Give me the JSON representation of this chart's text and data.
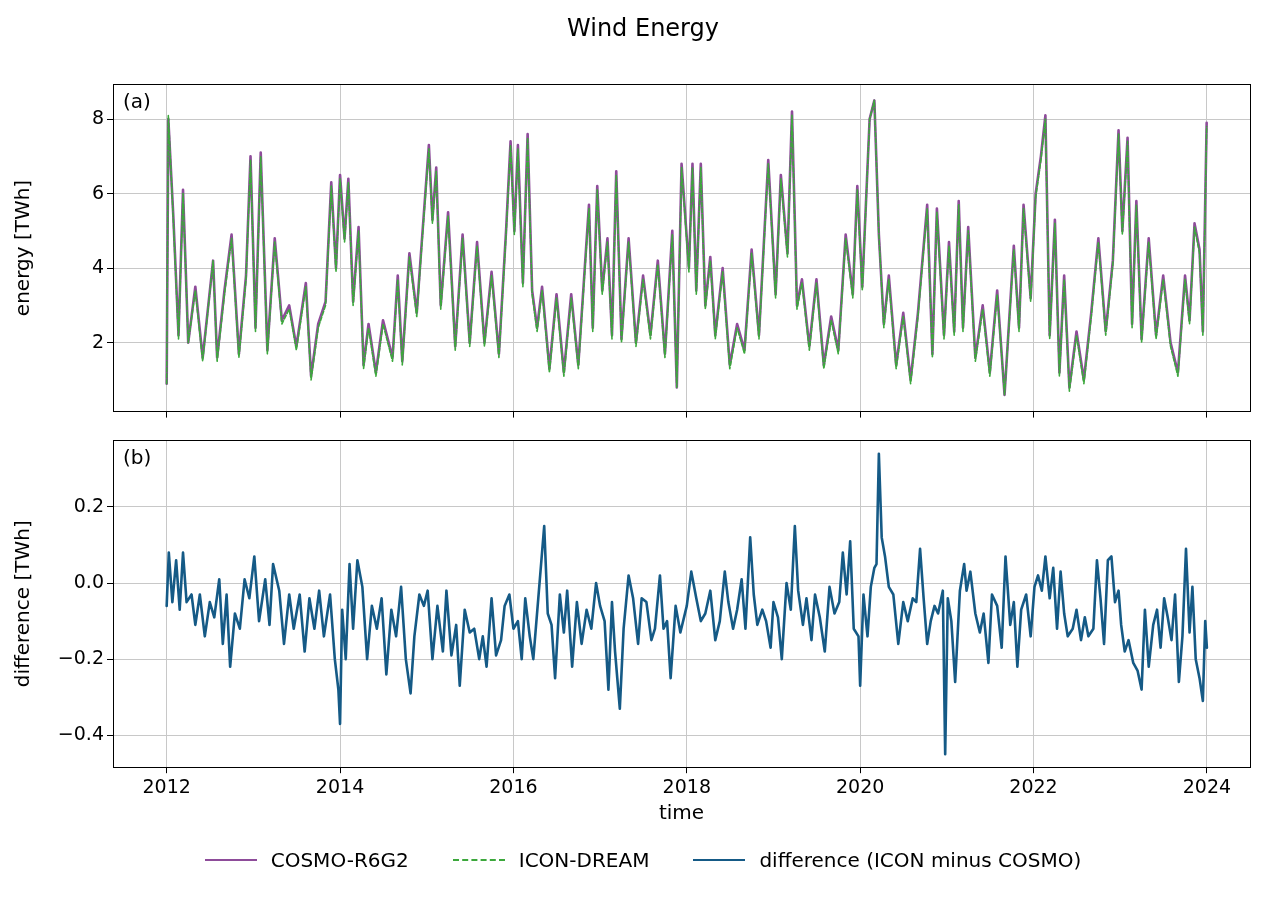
{
  "chart_data": [
    {
      "type": "line",
      "title": "Wind Energy",
      "ylabel": "energy [TWh]",
      "annotations": [
        "(a)"
      ],
      "xlim": [
        "2011-05-20",
        "2024-07-01"
      ],
      "xticks": [
        "2012",
        "2014",
        "2016",
        "2018",
        "2020",
        "2022",
        "2024"
      ],
      "ylim": [
        0.15,
        8.93
      ],
      "yticks": [
        2,
        4,
        6,
        8
      ],
      "tick_labels": "y",
      "grid": true,
      "legend": "bottom",
      "x": [
        "2012-01-01",
        "2012-01-08",
        "2012-01-29",
        "2012-02-20",
        "2012-03-10",
        "2012-04-01",
        "2012-05-01",
        "2012-06-01",
        "2012-07-15",
        "2012-08-01",
        "2012-09-01",
        "2012-10-01",
        "2012-11-01",
        "2012-12-01",
        "2012-12-20",
        "2013-01-10",
        "2013-02-01",
        "2013-03-01",
        "2013-04-01",
        "2013-05-01",
        "2013-06-01",
        "2013-07-01",
        "2013-08-10",
        "2013-09-01",
        "2013-10-01",
        "2013-11-01",
        "2013-11-25",
        "2013-12-15",
        "2014-01-01",
        "2014-01-20",
        "2014-02-05",
        "2014-02-25",
        "2014-03-20",
        "2014-04-10",
        "2014-05-01",
        "2014-06-01",
        "2014-07-01",
        "2014-08-10",
        "2014-09-01",
        "2014-09-20",
        "2014-10-20",
        "2014-11-20",
        "2014-12-10",
        "2015-01-10",
        "2015-01-25",
        "2015-02-10",
        "2015-03-01",
        "2015-04-01",
        "2015-05-01",
        "2015-06-01",
        "2015-07-01",
        "2015-08-01",
        "2015-09-01",
        "2015-10-01",
        "2015-11-01",
        "2015-12-01",
        "2015-12-20",
        "2016-01-05",
        "2016-01-20",
        "2016-02-10",
        "2016-03-01",
        "2016-03-20",
        "2016-04-10",
        "2016-05-01",
        "2016-06-01",
        "2016-07-01",
        "2016-08-01",
        "2016-09-01",
        "2016-10-01",
        "2016-11-15",
        "2016-12-01",
        "2016-12-20",
        "2017-01-10",
        "2017-02-01",
        "2017-02-20",
        "2017-03-10",
        "2017-04-01",
        "2017-05-01",
        "2017-06-01",
        "2017-07-01",
        "2017-08-01",
        "2017-09-01",
        "2017-10-01",
        "2017-11-01",
        "2017-11-20",
        "2017-12-10",
        "2018-01-10",
        "2018-01-25",
        "2018-02-10",
        "2018-03-01",
        "2018-03-20",
        "2018-04-10",
        "2018-05-01",
        "2018-06-01",
        "2018-07-01",
        "2018-08-01",
        "2018-09-01",
        "2018-10-01",
        "2018-11-01",
        "2018-12-10",
        "2019-01-10",
        "2019-02-01",
        "2019-03-01",
        "2019-03-20",
        "2019-04-10",
        "2019-05-01",
        "2019-06-01",
        "2019-07-01",
        "2019-08-01",
        "2019-09-01",
        "2019-10-01",
        "2019-11-01",
        "2019-12-01",
        "2019-12-20",
        "2020-01-10",
        "2020-02-10",
        "2020-03-01",
        "2020-03-20",
        "2020-04-10",
        "2020-05-01",
        "2020-06-01",
        "2020-07-01",
        "2020-08-01",
        "2020-09-01",
        "2020-10-10",
        "2020-11-01",
        "2020-11-20",
        "2020-12-20",
        "2021-01-10",
        "2021-02-01",
        "2021-02-20",
        "2021-03-10",
        "2021-04-01",
        "2021-05-01",
        "2021-06-01",
        "2021-07-01",
        "2021-08-01",
        "2021-09-01",
        "2021-10-10",
        "2021-11-01",
        "2021-11-20",
        "2021-12-20",
        "2022-01-10",
        "2022-02-01",
        "2022-02-20",
        "2022-03-10",
        "2022-04-01",
        "2022-04-20",
        "2022-05-10",
        "2022-06-01",
        "2022-07-01",
        "2022-08-01",
        "2022-09-01",
        "2022-10-01",
        "2022-11-01",
        "2022-12-01",
        "2022-12-25",
        "2023-01-10",
        "2023-02-01",
        "2023-02-20",
        "2023-03-10",
        "2023-04-01",
        "2023-05-01",
        "2023-06-01",
        "2023-07-01",
        "2023-08-01",
        "2023-09-01",
        "2023-10-01",
        "2023-10-20",
        "2023-11-10",
        "2023-12-01",
        "2023-12-15",
        "2023-12-31"
      ],
      "series": [
        {
          "name": "COSMO-R6G2",
          "color": "#8e4c9a",
          "values": [
            0.9,
            8.0,
            5.4,
            2.2,
            6.1,
            2.0,
            3.5,
            1.6,
            4.2,
            1.6,
            3.4,
            4.9,
            1.7,
            3.8,
            7.0,
            2.4,
            7.1,
            1.8,
            4.8,
            2.6,
            3.0,
            1.9,
            3.6,
            1.1,
            2.5,
            3.1,
            6.3,
            4.0,
            6.5,
            4.8,
            6.4,
            3.1,
            5.1,
            1.4,
            2.5,
            1.2,
            2.6,
            1.6,
            3.8,
            1.5,
            4.4,
            2.8,
            4.6,
            7.3,
            5.3,
            6.7,
            3.0,
            5.5,
            1.9,
            4.9,
            2.0,
            4.7,
            2.0,
            3.9,
            1.7,
            5.0,
            7.4,
            5.0,
            7.3,
            3.6,
            7.6,
            3.4,
            2.4,
            3.5,
            1.3,
            3.3,
            1.2,
            3.3,
            1.4,
            5.7,
            2.4,
            6.2,
            3.4,
            4.8,
            2.2,
            6.6,
            2.1,
            4.8,
            2.0,
            3.8,
            2.2,
            4.2,
            1.7,
            5.0,
            0.8,
            6.8,
            4.0,
            6.8,
            3.4,
            6.8,
            3.0,
            4.3,
            2.2,
            4.0,
            1.4,
            2.5,
            1.8,
            4.5,
            2.2,
            6.9,
            3.3,
            6.5,
            4.4,
            8.2,
            3.0,
            3.7,
            1.9,
            3.7,
            1.4,
            2.7,
            1.8,
            4.9,
            3.3,
            6.2,
            3.5,
            8.0,
            8.5,
            4.9,
            2.5,
            3.8,
            1.4,
            2.8,
            1.0,
            2.8,
            5.7,
            1.7,
            5.6,
            2.2,
            4.7,
            2.3,
            5.8,
            2.4,
            5.1,
            1.6,
            3.0,
            1.2,
            3.4,
            0.6,
            4.6,
            2.4,
            5.7,
            3.2,
            6.0,
            7.0,
            8.1,
            2.2,
            5.3,
            1.2,
            3.8,
            0.8,
            2.3,
            1.0,
            2.8,
            4.8,
            2.3,
            4.2,
            7.7,
            5.0,
            7.5,
            2.5,
            5.8,
            2.1,
            4.8,
            2.2,
            3.8,
            2.0,
            1.2,
            3.8,
            2.6,
            5.2,
            4.5,
            2.3,
            7.9
          ]
        },
        {
          "name": "ICON-DREAM",
          "color": "#3ca83c",
          "line_style": "dashed",
          "values": [
            0.9,
            8.1,
            5.3,
            2.1,
            6.0,
            2.0,
            3.4,
            1.5,
            4.2,
            1.5,
            3.3,
            4.8,
            1.6,
            3.7,
            6.9,
            2.3,
            7.0,
            1.7,
            4.7,
            2.5,
            2.9,
            1.8,
            3.5,
            1.0,
            2.4,
            3.0,
            6.2,
            3.9,
            6.4,
            4.7,
            6.3,
            3.0,
            5.0,
            1.3,
            2.4,
            1.1,
            2.5,
            1.5,
            3.7,
            1.4,
            4.3,
            2.7,
            4.5,
            7.2,
            5.2,
            6.6,
            2.9,
            5.4,
            1.8,
            4.8,
            1.9,
            4.6,
            1.9,
            3.8,
            1.6,
            4.9,
            7.3,
            4.9,
            7.2,
            3.5,
            7.5,
            3.3,
            2.3,
            3.4,
            1.2,
            3.2,
            1.1,
            3.2,
            1.3,
            5.6,
            2.3,
            6.1,
            3.3,
            4.7,
            2.1,
            6.5,
            2.0,
            4.7,
            1.9,
            3.7,
            2.1,
            4.1,
            1.6,
            4.9,
            0.8,
            6.7,
            3.9,
            6.7,
            3.3,
            6.7,
            2.9,
            4.2,
            2.1,
            3.9,
            1.3,
            2.4,
            1.7,
            4.4,
            2.1,
            6.8,
            3.2,
            6.4,
            4.3,
            8.1,
            2.9,
            3.6,
            1.8,
            3.6,
            1.3,
            2.6,
            1.7,
            4.8,
            3.2,
            6.1,
            3.4,
            8.0,
            8.5,
            4.9,
            2.4,
            3.7,
            1.3,
            2.7,
            0.9,
            2.7,
            5.6,
            1.6,
            5.5,
            2.1,
            4.6,
            2.2,
            5.7,
            2.3,
            5.0,
            1.5,
            2.9,
            1.1,
            3.3,
            0.6,
            4.5,
            2.3,
            5.6,
            3.1,
            5.9,
            6.9,
            8.0,
            2.1,
            5.2,
            1.1,
            3.7,
            0.7,
            2.2,
            0.9,
            2.7,
            4.7,
            2.2,
            4.1,
            7.6,
            4.9,
            7.4,
            2.4,
            5.7,
            2.0,
            4.7,
            2.1,
            3.7,
            1.9,
            1.1,
            3.7,
            2.5,
            5.1,
            4.4,
            2.2,
            7.8
          ]
        }
      ]
    },
    {
      "type": "line",
      "xlabel": "time",
      "ylabel": "difference [TWh]",
      "annotations": [
        "(b)"
      ],
      "xlim": [
        "2011-05-20",
        "2024-07-01"
      ],
      "xticks": [
        "2012",
        "2014",
        "2016",
        "2018",
        "2020",
        "2022",
        "2024"
      ],
      "ylim": [
        -0.484,
        0.375
      ],
      "yticks": [
        {
          "value": -0.4,
          "label": "−0.4"
        },
        {
          "value": -0.2,
          "label": "−0.2"
        },
        {
          "value": 0,
          "label": "0.0"
        },
        {
          "value": 0.2,
          "label": "0.2"
        }
      ],
      "grid": true,
      "legend": "bottom",
      "x": [
        "2012-01-01",
        "2012-01-10",
        "2012-01-25",
        "2012-02-10",
        "2012-02-25",
        "2012-03-10",
        "2012-03-25",
        "2012-04-15",
        "2012-05-01",
        "2012-05-20",
        "2012-06-10",
        "2012-07-01",
        "2012-07-20",
        "2012-08-10",
        "2012-08-25",
        "2012-09-10",
        "2012-09-25",
        "2012-10-15",
        "2012-11-05",
        "2012-11-25",
        "2012-12-15",
        "2013-01-05",
        "2013-01-25",
        "2013-02-20",
        "2013-03-10",
        "2013-03-25",
        "2013-04-20",
        "2013-05-10",
        "2013-06-01",
        "2013-06-20",
        "2013-07-15",
        "2013-08-05",
        "2013-08-25",
        "2013-09-15",
        "2013-10-05",
        "2013-10-25",
        "2013-11-20",
        "2013-12-10",
        "2013-12-25",
        "2014-01-01",
        "2014-01-10",
        "2014-01-25",
        "2014-02-10",
        "2014-02-25",
        "2014-03-15",
        "2014-04-05",
        "2014-04-25",
        "2014-05-15",
        "2014-06-05",
        "2014-06-25",
        "2014-07-15",
        "2014-08-05",
        "2014-08-25",
        "2014-09-15",
        "2014-10-05",
        "2014-10-25",
        "2014-11-10",
        "2014-12-01",
        "2014-12-20",
        "2015-01-05",
        "2015-01-25",
        "2015-02-15",
        "2015-03-10",
        "2015-03-25",
        "2015-04-15",
        "2015-05-05",
        "2015-05-20",
        "2015-06-10",
        "2015-07-01",
        "2015-07-20",
        "2015-08-10",
        "2015-08-25",
        "2015-09-10",
        "2015-10-01",
        "2015-10-20",
        "2015-11-10",
        "2015-11-25",
        "2015-12-15",
        "2016-01-01",
        "2016-01-20",
        "2016-02-05",
        "2016-02-20",
        "2016-03-10",
        "2016-03-25",
        "2016-04-15",
        "2016-05-10",
        "2016-05-25",
        "2016-06-10",
        "2016-06-25",
        "2016-07-15",
        "2016-08-01",
        "2016-08-15",
        "2016-09-05",
        "2016-09-25",
        "2016-10-15",
        "2016-11-05",
        "2016-11-25",
        "2016-12-15",
        "2017-01-01",
        "2017-01-20",
        "2017-02-05",
        "2017-02-20",
        "2017-03-05",
        "2017-03-25",
        "2017-04-10",
        "2017-05-01",
        "2017-05-20",
        "2017-06-10",
        "2017-06-25",
        "2017-07-15",
        "2017-08-05",
        "2017-08-20",
        "2017-09-10",
        "2017-09-25",
        "2017-10-10",
        "2017-10-25",
        "2017-11-15",
        "2017-12-05",
        "2018-01-01",
        "2018-01-20",
        "2018-02-10",
        "2018-03-01",
        "2018-03-20",
        "2018-04-10",
        "2018-05-01",
        "2018-05-20",
        "2018-06-10",
        "2018-06-25",
        "2018-07-15",
        "2018-08-01",
        "2018-08-20",
        "2018-09-05",
        "2018-09-25",
        "2018-10-10",
        "2018-10-25",
        "2018-11-15",
        "2018-12-01",
        "2018-12-20",
        "2019-01-01",
        "2019-01-20",
        "2019-02-05",
        "2019-02-25",
        "2019-03-15",
        "2019-04-01",
        "2019-04-15",
        "2019-05-05",
        "2019-05-20",
        "2019-06-10",
        "2019-06-25",
        "2019-07-15",
        "2019-08-05",
        "2019-08-25",
        "2019-09-15",
        "2019-10-05",
        "2019-10-20",
        "2019-11-05",
        "2019-11-20",
        "2019-12-05",
        "2019-12-25",
        "2020-01-01",
        "2020-01-15",
        "2020-02-01",
        "2020-02-15",
        "2020-03-01",
        "2020-03-10",
        "2020-03-20",
        "2020-04-01",
        "2020-04-15",
        "2020-05-01",
        "2020-05-20",
        "2020-06-10",
        "2020-07-01",
        "2020-07-20",
        "2020-08-10",
        "2020-08-25",
        "2020-09-10",
        "2020-09-25",
        "2020-10-10",
        "2020-10-25",
        "2020-11-10",
        "2020-11-25",
        "2020-12-15",
        "2020-12-25",
        "2021-01-05",
        "2021-01-20",
        "2021-02-05",
        "2021-02-25",
        "2021-03-15",
        "2021-03-25",
        "2021-04-10",
        "2021-05-01",
        "2021-05-20",
        "2021-06-05",
        "2021-06-25",
        "2021-07-10",
        "2021-08-01",
        "2021-08-20",
        "2021-09-05",
        "2021-09-25",
        "2021-10-10",
        "2021-10-25",
        "2021-11-10",
        "2021-12-01",
        "2021-12-20",
        "2022-01-05",
        "2022-01-20",
        "2022-02-05",
        "2022-02-20",
        "2022-03-10",
        "2022-03-25",
        "2022-04-10",
        "2022-04-25",
        "2022-05-10",
        "2022-05-25",
        "2022-06-15",
        "2022-07-01",
        "2022-07-20",
        "2022-08-05",
        "2022-08-20",
        "2022-09-10",
        "2022-09-25",
        "2022-10-10",
        "2022-10-25",
        "2022-11-10",
        "2022-11-25",
        "2022-12-10",
        "2022-12-25",
        "2023-01-05",
        "2023-01-20",
        "2023-02-05",
        "2023-02-25",
        "2023-03-15",
        "2023-04-01",
        "2023-04-15",
        "2023-05-01",
        "2023-05-20",
        "2023-06-05",
        "2023-06-20",
        "2023-07-05",
        "2023-07-20",
        "2023-08-05",
        "2023-08-20",
        "2023-09-05",
        "2023-09-20",
        "2023-10-05",
        "2023-10-20",
        "2023-11-01",
        "2023-11-15",
        "2023-12-01",
        "2023-12-15",
        "2023-12-25",
        "2024-01-01"
      ],
      "series": [
        {
          "name": "difference (ICON minus COSMO)",
          "color": "#155a86",
          "values": [
            -0.06,
            0.08,
            -0.05,
            0.06,
            -0.07,
            0.08,
            -0.05,
            -0.03,
            -0.11,
            -0.03,
            -0.14,
            -0.05,
            -0.09,
            0.01,
            -0.16,
            -0.03,
            -0.22,
            -0.08,
            -0.12,
            0.01,
            -0.04,
            0.07,
            -0.1,
            0.01,
            -0.11,
            0.05,
            -0.02,
            -0.16,
            -0.03,
            -0.12,
            -0.03,
            -0.18,
            -0.04,
            -0.12,
            -0.02,
            -0.14,
            -0.03,
            -0.2,
            -0.28,
            -0.37,
            -0.07,
            -0.2,
            0.05,
            -0.12,
            0.06,
            -0.01,
            -0.2,
            -0.06,
            -0.12,
            -0.04,
            -0.24,
            -0.07,
            -0.14,
            -0.01,
            -0.2,
            -0.29,
            -0.14,
            -0.03,
            -0.06,
            -0.02,
            -0.2,
            -0.06,
            -0.18,
            -0.02,
            -0.19,
            -0.11,
            -0.27,
            -0.07,
            -0.13,
            -0.12,
            -0.2,
            -0.14,
            -0.22,
            -0.04,
            -0.19,
            -0.15,
            -0.06,
            -0.03,
            -0.12,
            -0.1,
            -0.2,
            -0.04,
            -0.14,
            -0.2,
            -0.04,
            0.15,
            -0.08,
            -0.11,
            -0.25,
            -0.03,
            -0.13,
            -0.02,
            -0.22,
            -0.05,
            -0.16,
            -0.07,
            -0.12,
            0.0,
            -0.06,
            -0.1,
            -0.28,
            -0.05,
            -0.18,
            -0.33,
            -0.12,
            0.02,
            -0.04,
            -0.16,
            -0.04,
            -0.05,
            -0.15,
            -0.12,
            0.02,
            -0.12,
            -0.1,
            -0.25,
            -0.06,
            -0.13,
            -0.06,
            0.03,
            -0.04,
            -0.1,
            -0.08,
            -0.02,
            -0.15,
            -0.1,
            0.03,
            -0.05,
            -0.12,
            -0.07,
            0.01,
            -0.12,
            0.12,
            -0.03,
            -0.11,
            -0.07,
            -0.1,
            -0.17,
            -0.05,
            -0.09,
            -0.2,
            0.0,
            -0.07,
            0.15,
            -0.02,
            -0.11,
            -0.04,
            -0.15,
            -0.03,
            -0.09,
            -0.18,
            -0.01,
            -0.08,
            -0.05,
            0.08,
            -0.03,
            0.11,
            -0.12,
            -0.14,
            -0.27,
            -0.03,
            -0.14,
            -0.01,
            0.04,
            0.05,
            0.34,
            0.12,
            0.07,
            -0.01,
            -0.03,
            -0.16,
            -0.05,
            -0.1,
            -0.04,
            -0.05,
            0.09,
            -0.04,
            -0.16,
            -0.1,
            -0.06,
            -0.08,
            -0.02,
            -0.45,
            -0.04,
            -0.1,
            -0.26,
            -0.02,
            0.05,
            -0.02,
            0.03,
            -0.08,
            -0.13,
            -0.08,
            -0.21,
            -0.03,
            -0.06,
            -0.17,
            0.07,
            -0.11,
            -0.05,
            -0.22,
            -0.07,
            -0.03,
            -0.14,
            -0.01,
            0.02,
            -0.02,
            0.07,
            -0.04,
            0.04,
            -0.12,
            0.03,
            -0.08,
            -0.14,
            -0.12,
            -0.07,
            -0.15,
            -0.09,
            -0.14,
            -0.12,
            0.06,
            -0.04,
            -0.16,
            0.06,
            0.07,
            -0.05,
            -0.02,
            -0.11,
            -0.18,
            -0.15,
            -0.21,
            -0.23,
            -0.28,
            -0.07,
            -0.22,
            -0.11,
            -0.07,
            -0.17,
            -0.04,
            -0.09,
            -0.15,
            -0.03,
            -0.26,
            -0.14,
            0.09,
            -0.13,
            -0.01,
            -0.2,
            -0.25,
            -0.31,
            -0.1,
            -0.17
          ]
        }
      ]
    }
  ]
}
